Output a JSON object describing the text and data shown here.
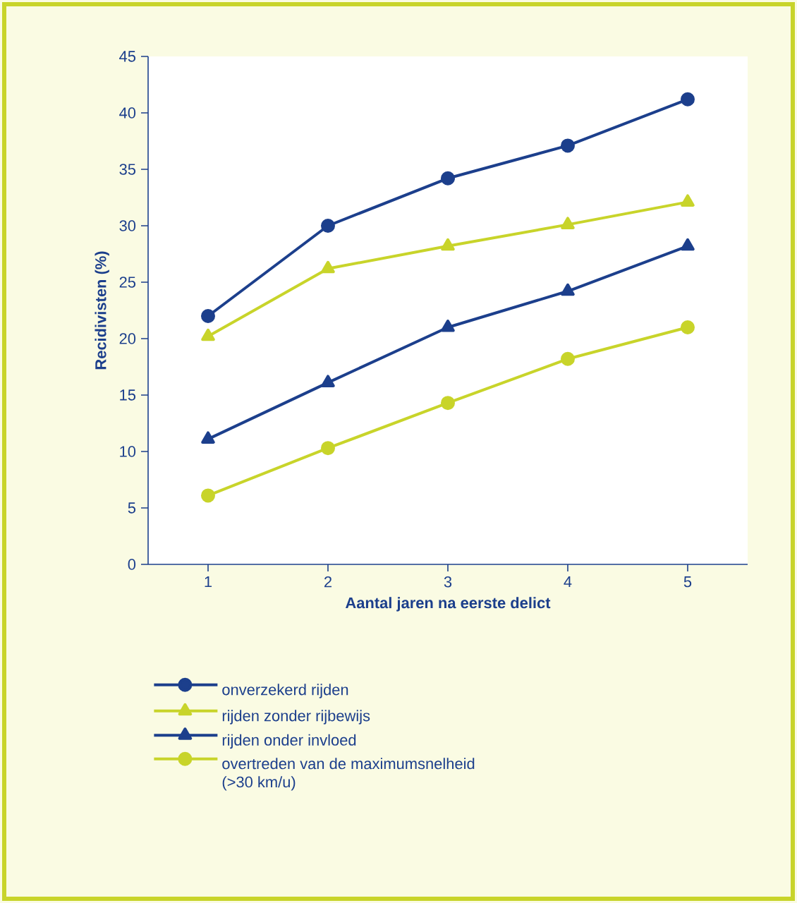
{
  "chart_data": {
    "type": "line",
    "xlabel": "Aantal jaren na eerste delict",
    "ylabel": "Recidivisten (%)",
    "x": [
      1,
      2,
      3,
      4,
      5
    ],
    "xlim": [
      0.5,
      5.5
    ],
    "xticks": [
      1,
      2,
      3,
      4,
      5
    ],
    "ylim": [
      0,
      45
    ],
    "yticks": [
      0,
      5,
      10,
      15,
      20,
      25,
      30,
      35,
      40,
      45
    ],
    "grid": false,
    "legend": "bottom",
    "line_style": "solid",
    "series": [
      {
        "name": "onverzekerd rijden",
        "color": "#1c3f8c",
        "marker": "circle",
        "values": [
          22,
          30,
          34.2,
          37.1,
          41.2
        ]
      },
      {
        "name": "rijden zonder rijbewijs",
        "color": "#c8d42a",
        "marker": "triangle",
        "values": [
          20.2,
          26.2,
          28.2,
          30.1,
          32.1
        ]
      },
      {
        "name": "rijden onder invloed",
        "color": "#1c3f8c",
        "marker": "triangle",
        "values": [
          11.1,
          16.1,
          21,
          24.2,
          28.2
        ]
      },
      {
        "name": "overtreden van de maximumsnelheid (>30 km/u)",
        "color": "#c8d42a",
        "marker": "circle",
        "values": [
          6.1,
          10.3,
          14.3,
          18.2,
          21
        ]
      }
    ]
  }
}
